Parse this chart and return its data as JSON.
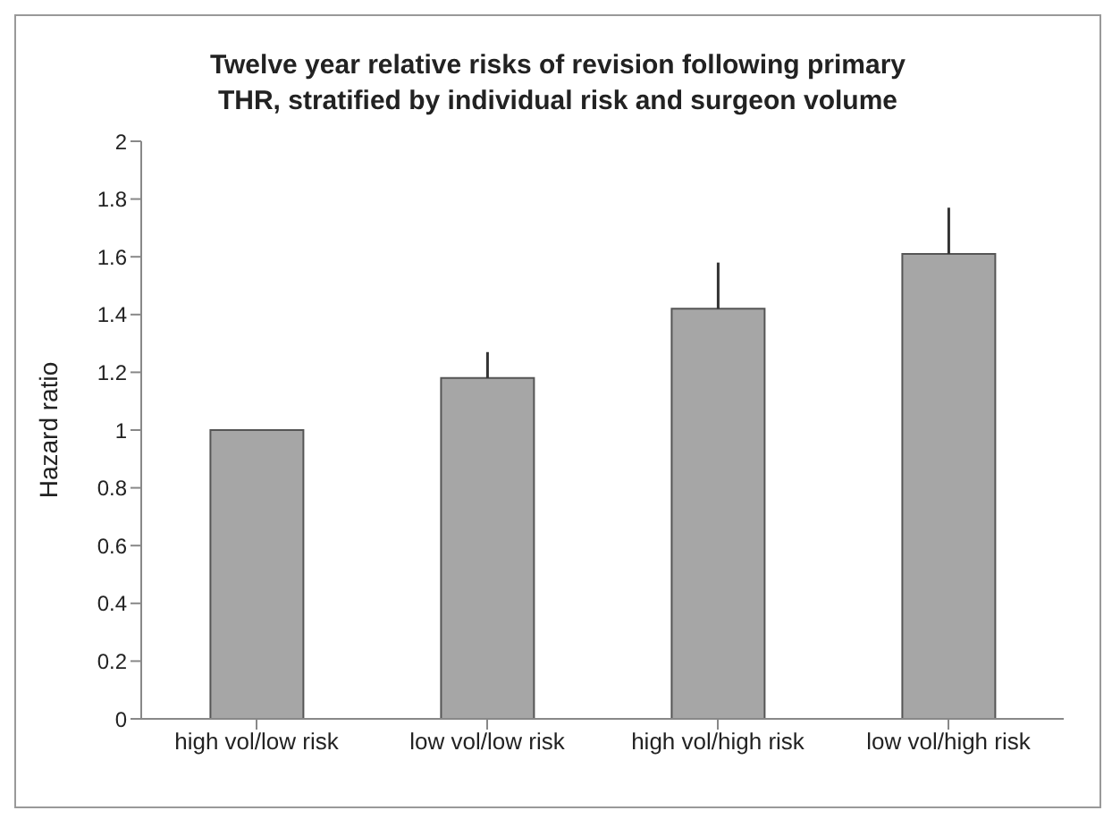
{
  "chart_data": {
    "type": "bar",
    "title": "Twelve year relative risks of revision following primary THR, stratified by individual risk and surgeon volume",
    "ylabel": "Hazard ratio",
    "categories": [
      "high vol/low risk",
      "low vol/low risk",
      "high vol/high risk",
      "low vol/high risk"
    ],
    "values": [
      1.0,
      1.18,
      1.42,
      1.61
    ],
    "errors": [
      null,
      [
        1.18,
        1.27
      ],
      [
        1.42,
        1.58
      ],
      [
        1.61,
        1.77
      ]
    ],
    "color": "#a6a6a6",
    "ylim": [
      0,
      2
    ],
    "yticks": [
      0,
      0.2,
      0.4,
      0.6,
      0.8,
      1,
      1.2,
      1.4,
      1.6,
      1.8,
      2
    ],
    "grid": false,
    "legend": false
  }
}
